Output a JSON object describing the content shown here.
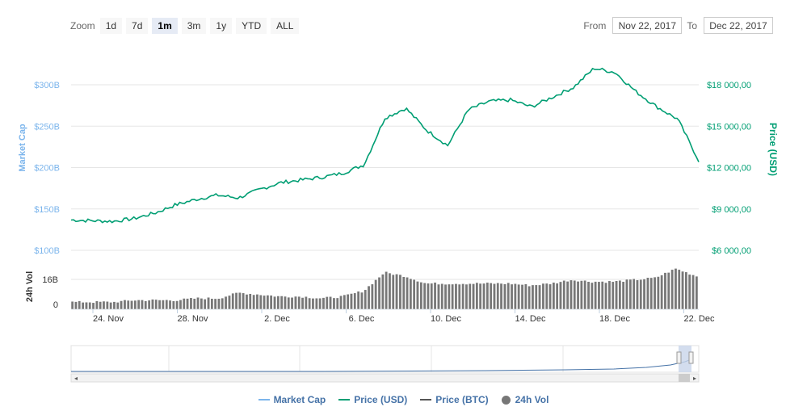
{
  "toolbar": {
    "zoom_label": "Zoom",
    "buttons": [
      "1d",
      "7d",
      "1m",
      "3m",
      "1y",
      "YTD",
      "ALL"
    ],
    "active": "1m",
    "from_label": "From",
    "from_value": "Nov 22, 2017",
    "to_label": "To",
    "to_value": "Dec 22, 2017"
  },
  "legend": {
    "market_cap": "Market Cap",
    "price_usd": "Price (USD)",
    "price_btc": "Price (BTC)",
    "vol_24h": "24h Vol"
  },
  "colors": {
    "market_cap": "#7cb5ec",
    "price_usd": "#009e73",
    "price_btc": "#555555",
    "volume": "#777777",
    "navigator": "#4572a7"
  },
  "chart_data": {
    "type": "line",
    "x_ticks": [
      "24. Nov",
      "28. Nov",
      "2. Dec",
      "6. Dec",
      "10. Dec",
      "14. Dec",
      "18. Dec",
      "22. Dec"
    ],
    "left_axis": {
      "label": "Market Cap",
      "ticks": [
        "$100B",
        "$150B",
        "$200B",
        "$250B",
        "$300B"
      ]
    },
    "right_axis": {
      "label": "Price (USD)",
      "ticks": [
        "$6 000,00",
        "$9 000,00",
        "$12 000,00",
        "$15 000,00",
        "$18 000,00"
      ]
    },
    "price_range": [
      6000,
      18000
    ],
    "volume_axis": {
      "label": "24h Vol",
      "ticks": [
        "0",
        "16B"
      ]
    },
    "price_usd": {
      "x": [
        "Nov 22",
        "Nov 23",
        "Nov 24",
        "Nov 25",
        "Nov 26",
        "Nov 27",
        "Nov 28",
        "Nov 29",
        "Nov 30",
        "Dec 1",
        "Dec 2",
        "Dec 3",
        "Dec 4",
        "Dec 5",
        "Dec 6",
        "Dec 7",
        "Dec 8",
        "Dec 9",
        "Dec 10",
        "Dec 11",
        "Dec 12",
        "Dec 13",
        "Dec 14",
        "Dec 15",
        "Dec 16",
        "Dec 17",
        "Dec 18",
        "Dec 19",
        "Dec 20",
        "Dec 21",
        "Dec 22"
      ],
      "values": [
        8200,
        8150,
        8100,
        8300,
        8700,
        9300,
        9700,
        10000,
        9800,
        10400,
        10900,
        11100,
        11300,
        11600,
        12200,
        15600,
        16300,
        14700,
        13600,
        16200,
        16800,
        16900,
        16400,
        17100,
        17800,
        19200,
        18900,
        17500,
        16400,
        15500,
        12500
      ]
    },
    "volume_b": [
      4,
      4,
      4,
      5,
      5,
      5,
      6,
      6,
      9,
      8,
      7,
      7,
      6,
      7,
      10,
      20,
      18,
      14,
      14,
      14,
      14,
      14,
      13,
      14,
      16,
      15,
      15,
      16,
      17,
      22,
      18
    ]
  }
}
